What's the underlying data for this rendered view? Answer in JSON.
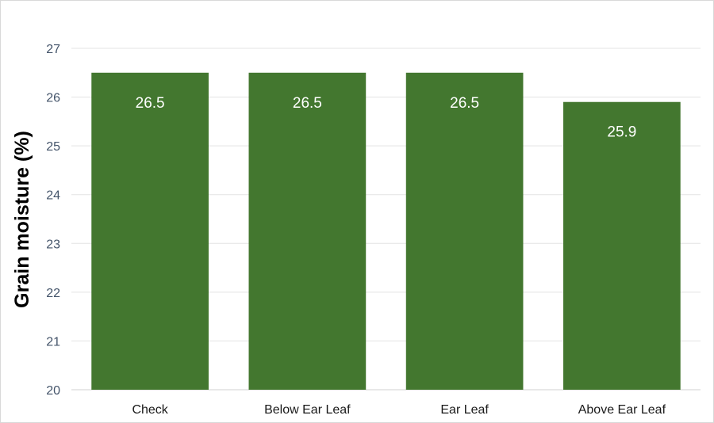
{
  "chart_data": {
    "type": "bar",
    "title": "",
    "xlabel": "",
    "ylabel": "Grain moisture (%)",
    "categories": [
      "Check",
      "Below Ear Leaf",
      "Ear Leaf",
      "Above Ear Leaf"
    ],
    "values": [
      26.5,
      26.5,
      26.5,
      25.9
    ],
    "data_labels": [
      "26.5",
      "26.5",
      "26.5",
      "25.9"
    ],
    "ylim": [
      20,
      27
    ],
    "yticks": [
      20,
      21,
      22,
      23,
      24,
      25,
      26,
      27
    ],
    "grid": true,
    "legend": "none",
    "colors": {
      "bar": "#43772f",
      "grid": "#e3e3e3",
      "tick_text": "#44546a"
    }
  }
}
